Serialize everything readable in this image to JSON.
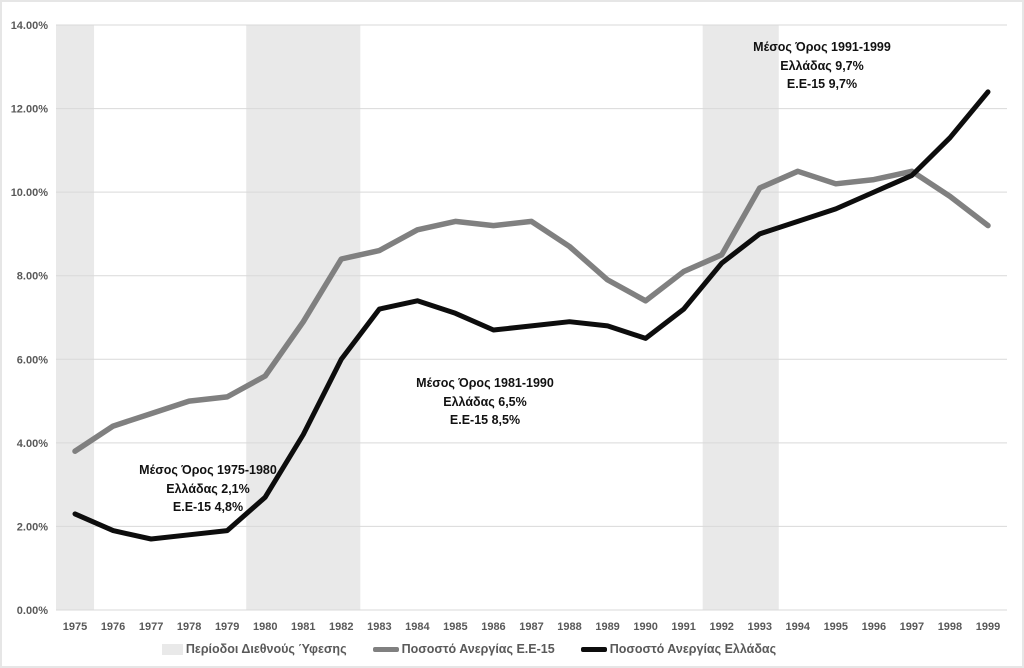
{
  "chart_data": {
    "type": "line",
    "title": "",
    "xlabel": "",
    "ylabel": "",
    "categories": [
      "1975",
      "1976",
      "1977",
      "1978",
      "1979",
      "1980",
      "1981",
      "1982",
      "1983",
      "1984",
      "1985",
      "1986",
      "1987",
      "1988",
      "1989",
      "1990",
      "1991",
      "1992",
      "1993",
      "1994",
      "1995",
      "1996",
      "1997",
      "1998",
      "1999"
    ],
    "series": [
      {
        "name": "Ποσοστό Ανεργίας Ε.Ε-15",
        "color": "#808080",
        "width": 5.5,
        "values": [
          3.8,
          4.4,
          4.7,
          5.0,
          5.1,
          5.6,
          6.9,
          8.4,
          8.6,
          9.1,
          9.3,
          9.2,
          9.3,
          8.7,
          7.9,
          7.4,
          8.1,
          8.5,
          10.1,
          10.5,
          10.2,
          10.3,
          10.5,
          9.9,
          9.2
        ]
      },
      {
        "name": "Ποσοστό Ανεργίας Ελλάδας",
        "color": "#0d0d0d",
        "width": 5,
        "values": [
          2.3,
          1.9,
          1.7,
          1.8,
          1.9,
          2.7,
          4.2,
          6.0,
          7.2,
          7.4,
          7.1,
          6.7,
          6.8,
          6.9,
          6.8,
          6.5,
          7.2,
          8.3,
          9.0,
          9.3,
          9.6,
          10.0,
          10.4,
          11.3,
          12.4
        ]
      }
    ],
    "recession_bands": [
      [
        "1975",
        "1975"
      ],
      [
        "1980",
        "1982"
      ],
      [
        "1992",
        "1993"
      ]
    ],
    "band_color": "#e9e9e9",
    "grid": true,
    "gridline_color": "#d9d9d9",
    "axis_text_color": "#595959",
    "ylim": [
      0,
      14
    ],
    "y_tick_step": 2,
    "y_tick_suffix": "%",
    "legend_position": "bottom"
  },
  "annotations": [
    {
      "line1": "Μέσος Όρος 1975-1980",
      "line2": "Ελλάδας 2,1%",
      "line3": "Ε.Ε-15 4,8%"
    },
    {
      "line1": "Μέσος Όρος 1981-1990",
      "line2": "Ελλάδας 6,5%",
      "line3": "Ε.Ε-15 8,5%"
    },
    {
      "line1": "Μέσος Όρος 1991-1999",
      "line2": "Ελλάδας 9,7%",
      "line3": "Ε.Ε-15 9,7%"
    }
  ],
  "legend": {
    "recession_label": "Περίοδοι Διεθνούς Ύφεσης",
    "eu15_label": "Ποσοστό Ανεργίας Ε.Ε-15",
    "greece_label": "Ποσοστό Ανεργίας Ελλάδας"
  }
}
